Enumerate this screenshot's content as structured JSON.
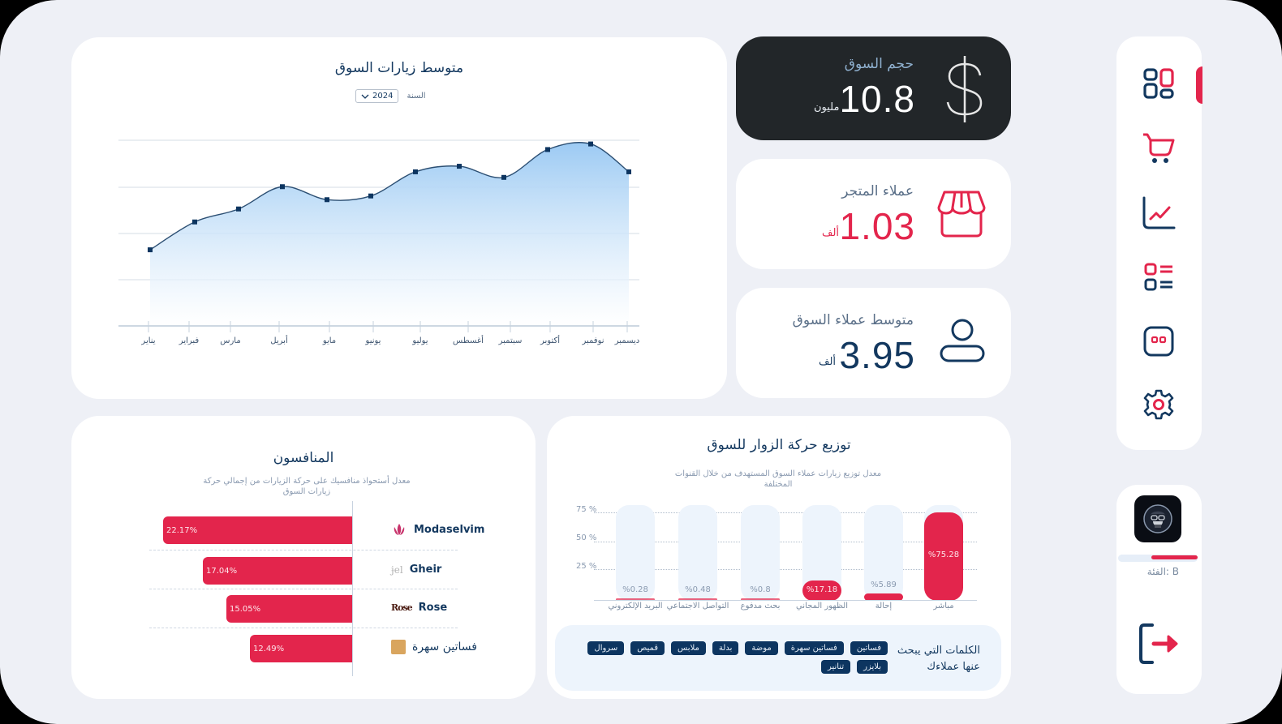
{
  "line_chart": {
    "title": "متوسط زيارات السوق",
    "year_label": "السنة",
    "year_value": "2024"
  },
  "kpis": {
    "market_size": {
      "label": "حجم السوق",
      "value": "10.8",
      "unit": "مليون",
      "icon": "dollar-icon"
    },
    "store_customers": {
      "label": "عملاء المتجر",
      "value": "1.03",
      "unit": "ألف",
      "icon": "store-icon"
    },
    "avg_market_customers": {
      "label": "متوسط عملاء السوق",
      "value": "3.95",
      "unit": "ألف",
      "icon": "user-icon"
    }
  },
  "competitors": {
    "title": "المنافسون",
    "subtitle": "معدل أستحواذ منافسيك على حركة الزيارات من إجمالي حركة زيارات السوق",
    "items": [
      {
        "name": "Modaselvim",
        "value": "22.17%",
        "pct": 22.17
      },
      {
        "name": "Gheir",
        "value": "17.04%",
        "pct": 17.04
      },
      {
        "name": "Rose",
        "value": "15.05%",
        "pct": 15.05
      },
      {
        "name": "فساتين سهرة",
        "value": "12.49%",
        "pct": 12.49
      }
    ]
  },
  "traffic": {
    "title": "توزيع حركة الزوار للسوق",
    "subtitle": "معدل توزيع زيارات عملاء السوق المستهدف من خلال القنوات المختلفة",
    "y_ticks": [
      "75 %",
      "50 %",
      "25 %"
    ],
    "channels": [
      {
        "label": "البريد الإلكتروني",
        "value": "%0.28",
        "pct": 0.28
      },
      {
        "label": "التواصل الاجتماعي",
        "value": "%0.48",
        "pct": 0.48
      },
      {
        "label": "بحث مدفوع",
        "value": "%0.8",
        "pct": 0.8
      },
      {
        "label": "الظهور المجاني",
        "value": "%17.18",
        "pct": 17.18
      },
      {
        "label": "إحالة",
        "value": "%5.89",
        "pct": 5.89
      },
      {
        "label": "مباشر",
        "value": "%75.28",
        "pct": 75.28
      }
    ],
    "keywords_label": "الكلمات التي يبحث عنها عملاءك",
    "keywords": [
      "فساتين",
      "فساتين سهرة",
      "موضة",
      "بدلة",
      "ملابس",
      "قميص",
      "سروال",
      "بلايزر",
      "تنانير"
    ]
  },
  "sidebar": {
    "items": [
      {
        "name": "dashboard",
        "icon": "grid-icon",
        "active": true
      },
      {
        "name": "cart",
        "icon": "cart-icon"
      },
      {
        "name": "analytics",
        "icon": "chart-icon"
      },
      {
        "name": "list",
        "icon": "list-icon"
      },
      {
        "name": "chat",
        "icon": "chat-icon"
      },
      {
        "name": "settings",
        "icon": "gear-icon"
      }
    ]
  },
  "user": {
    "tier_label": "الفئة: B",
    "tier_progress": 58
  },
  "colors": {
    "accent": "#e3254c",
    "navy": "#13385f",
    "background": "#eef0f6",
    "dark_card": "#222629"
  },
  "chart_data": [
    {
      "type": "area",
      "title": "متوسط زيارات السوق",
      "categories": [
        "يناير",
        "فبراير",
        "مارس",
        "أبريل",
        "مايو",
        "يونيو",
        "يوليو",
        "أغسطس",
        "سبتمبر",
        "أكتوبر",
        "نوفمبر",
        "ديسمبر"
      ],
      "values": [
        41,
        56,
        63,
        75,
        68,
        70,
        83,
        86,
        80,
        95,
        98,
        83
      ],
      "xlabel": "",
      "ylabel": "",
      "ylim": [
        0,
        100
      ],
      "grid": true,
      "note": "relative scale; no y-axis labels shown"
    },
    {
      "type": "bar",
      "orientation": "horizontal",
      "title": "المنافسون",
      "categories": [
        "Modaselvim",
        "Gheir",
        "Rose",
        "فساتين سهرة"
      ],
      "values": [
        22.17,
        17.04,
        15.05,
        12.49
      ]
    },
    {
      "type": "bar",
      "title": "توزيع حركة الزوار للسوق",
      "categories": [
        "البريد الإلكتروني",
        "التواصل الاجتماعي",
        "بحث مدفوع",
        "الظهور المجاني",
        "إحالة",
        "مباشر"
      ],
      "values": [
        0.28,
        0.48,
        0.8,
        17.18,
        5.89,
        75.28
      ],
      "ylabel": "%",
      "ylim": [
        0,
        75
      ],
      "yticks": [
        25,
        50,
        75
      ]
    }
  ]
}
